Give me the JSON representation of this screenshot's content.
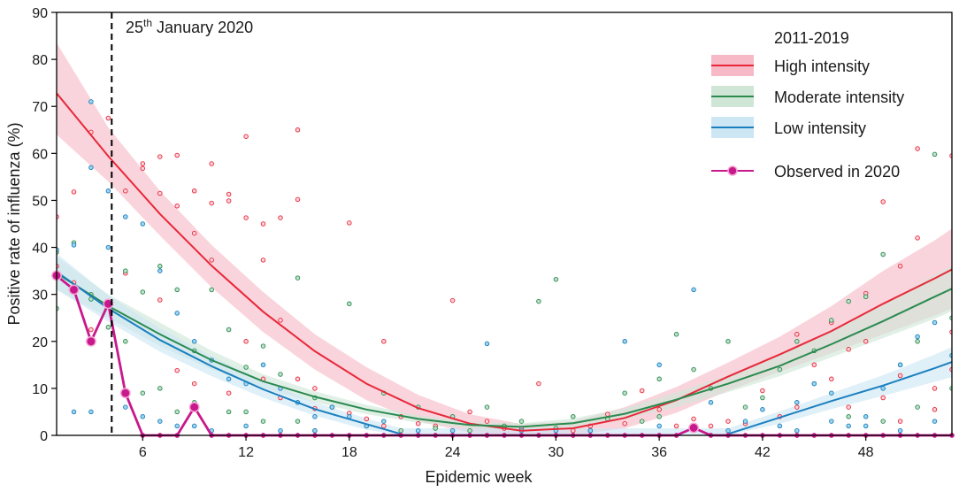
{
  "chart_data": {
    "type": "line",
    "xlabel": "Epidemic week",
    "ylabel": "Positive rate of influenza (%)",
    "xlim": [
      1,
      53
    ],
    "ylim": [
      0,
      90
    ],
    "xticks": [
      6,
      12,
      18,
      24,
      30,
      36,
      42,
      48
    ],
    "yticks": [
      0,
      10,
      20,
      30,
      40,
      50,
      60,
      70,
      80,
      90
    ],
    "annotation": {
      "prefix": "25",
      "superscript": "th",
      "suffix": " January 2020",
      "week": 4.2
    },
    "legend": {
      "title": "2011-2019",
      "position": "top-right",
      "entries": [
        "High intensity",
        "Moderate intensity",
        "Low intensity",
        "Observed in 2020"
      ]
    },
    "series": [
      {
        "name": "High intensity",
        "color": "#e8283a",
        "band": "#f7b9c6",
        "x": [
          1,
          4,
          7,
          10,
          13,
          16,
          19,
          22,
          25,
          28,
          31,
          34,
          37,
          40,
          43,
          46,
          49,
          52,
          53
        ],
        "y": [
          72.8,
          59.4,
          47.1,
          36.1,
          26.3,
          17.9,
          11.0,
          5.8,
          2.5,
          1.0,
          1.5,
          3.7,
          7.5,
          12.5,
          17.2,
          22.2,
          28.0,
          33.4,
          35.3
        ],
        "lower": [
          64.0,
          54.0,
          42.5,
          31.5,
          22.0,
          14.0,
          7.5,
          3.0,
          0.6,
          0.0,
          0.0,
          1.5,
          4.8,
          9.5,
          13.5,
          17.5,
          21.5,
          25.5,
          27.0
        ],
        "upper": [
          83.5,
          65.5,
          52.0,
          40.5,
          30.5,
          21.5,
          14.5,
          8.6,
          4.5,
          2.4,
          3.0,
          6.0,
          10.3,
          15.5,
          21.0,
          27.5,
          35.0,
          41.5,
          44.0
        ]
      },
      {
        "name": "Moderate intensity",
        "color": "#2a8a50",
        "band": "#cfe6d6",
        "x": [
          1,
          4,
          7,
          10,
          13,
          16,
          19,
          22,
          25,
          28,
          31,
          34,
          37,
          40,
          43,
          46,
          49,
          52,
          53
        ],
        "y": [
          34.5,
          27.5,
          21.5,
          16.0,
          11.5,
          8.2,
          5.5,
          3.5,
          2.2,
          1.8,
          2.6,
          4.6,
          7.6,
          11.0,
          14.8,
          19.4,
          24.3,
          29.5,
          31.2
        ],
        "lower": [
          31.0,
          25.0,
          19.0,
          14.0,
          10.0,
          7.0,
          4.5,
          2.7,
          1.5,
          1.0,
          1.6,
          3.4,
          6.0,
          9.2,
          12.6,
          16.6,
          20.7,
          24.8,
          26.4
        ],
        "upper": [
          38.0,
          30.0,
          24.0,
          18.0,
          13.0,
          9.4,
          6.5,
          4.3,
          2.9,
          2.6,
          3.6,
          5.8,
          9.2,
          12.8,
          17.0,
          22.2,
          27.9,
          34.2,
          36.0
        ]
      },
      {
        "name": "Low intensity",
        "color": "#1b7fbf",
        "band": "#cce6f4",
        "x": [
          1,
          4,
          7,
          10,
          13,
          16,
          19,
          21,
          40,
          43,
          46,
          49,
          52,
          53
        ],
        "y": [
          34.8,
          27.0,
          20.3,
          14.7,
          9.8,
          5.6,
          2.4,
          0.3,
          0.3,
          3.8,
          7.3,
          10.6,
          14.3,
          15.6
        ],
        "lower": [
          31.0,
          24.2,
          17.8,
          12.6,
          8.0,
          4.2,
          1.2,
          0.0,
          0.0,
          2.5,
          5.6,
          8.4,
          11.4,
          12.4
        ],
        "upper": [
          38.7,
          29.8,
          22.8,
          16.8,
          11.6,
          7.0,
          3.6,
          1.5,
          1.5,
          5.1,
          9.0,
          12.8,
          17.2,
          18.8
        ]
      },
      {
        "name": "Observed in 2020",
        "color": "#c8198c",
        "x": [
          1,
          2,
          3,
          4,
          5,
          6,
          7,
          8,
          9,
          10,
          11,
          12,
          13,
          14,
          15,
          16,
          17,
          18,
          19,
          20,
          21,
          22,
          23,
          24,
          25,
          26,
          27,
          28,
          29,
          30,
          31,
          32,
          33,
          34,
          35,
          36,
          37,
          38,
          39,
          40,
          41,
          42,
          43,
          44,
          45,
          46,
          47,
          48,
          49,
          50,
          51,
          52,
          53
        ],
        "y": [
          34,
          31,
          20,
          28,
          9,
          0,
          0,
          0,
          6,
          0,
          0,
          0,
          0,
          0,
          0,
          0,
          0,
          0,
          0,
          0,
          0,
          0,
          0,
          0,
          0,
          0,
          0,
          0,
          0,
          0,
          0,
          0,
          0,
          0,
          0,
          0,
          0,
          1.6,
          0,
          0,
          0,
          0,
          0,
          0,
          0,
          0,
          0,
          0,
          0,
          0,
          0,
          0,
          0
        ],
        "highlighted_weeks": [
          1,
          2,
          3,
          4,
          5,
          9,
          38
        ]
      }
    ],
    "scatter": {
      "description": "weekly positive rates of prior seasons 2011-2019",
      "high": [
        [
          1,
          46.5
        ],
        [
          2,
          51.8
        ],
        [
          3,
          64.5
        ],
        [
          4,
          67.5
        ],
        [
          5,
          52
        ],
        [
          6,
          57.8
        ],
        [
          6,
          56.8
        ],
        [
          7,
          59.3
        ],
        [
          7,
          51.5
        ],
        [
          8,
          59.6
        ],
        [
          8,
          48.8
        ],
        [
          9,
          52
        ],
        [
          9,
          43
        ],
        [
          10,
          57.8
        ],
        [
          10,
          49.4
        ],
        [
          11,
          51.3
        ],
        [
          11,
          49.9
        ],
        [
          12,
          63.6
        ],
        [
          12,
          46.3
        ],
        [
          13,
          45
        ],
        [
          13,
          37.3
        ],
        [
          14,
          46.3
        ],
        [
          14,
          24.5
        ],
        [
          15,
          65
        ],
        [
          15,
          50.2
        ],
        [
          16,
          10
        ],
        [
          20,
          20
        ],
        [
          18,
          45.2
        ],
        [
          24,
          28.7
        ],
        [
          44,
          21.5
        ],
        [
          46,
          24
        ],
        [
          48,
          30.2
        ],
        [
          48,
          20
        ],
        [
          49,
          49.7
        ],
        [
          50,
          36
        ],
        [
          51,
          42
        ],
        [
          51,
          61
        ],
        [
          53,
          22
        ],
        [
          53,
          59.5
        ],
        [
          38,
          3.5
        ],
        [
          36,
          5.5
        ],
        [
          41,
          2.5
        ],
        [
          45,
          15
        ],
        [
          47,
          18.3
        ],
        [
          50,
          12.7
        ],
        [
          52,
          5.5
        ],
        [
          35,
          9.5
        ],
        [
          33,
          4.5
        ],
        [
          29,
          11
        ],
        [
          25,
          5
        ],
        [
          42,
          9.5
        ],
        [
          12,
          20
        ],
        [
          10,
          37.3
        ],
        [
          7,
          28.8
        ],
        [
          5,
          34.5
        ],
        [
          3,
          22.5
        ],
        [
          2,
          32.5
        ],
        [
          1,
          36
        ],
        [
          8,
          13.8
        ],
        [
          9,
          11
        ],
        [
          11,
          9
        ],
        [
          13,
          12
        ],
        [
          14,
          8
        ],
        [
          15,
          12
        ],
        [
          16,
          5.7
        ],
        [
          18,
          4.7
        ],
        [
          19,
          3.5
        ],
        [
          21,
          4
        ],
        [
          22,
          2.5
        ],
        [
          23,
          2
        ],
        [
          26,
          3
        ],
        [
          27,
          1.5
        ],
        [
          28,
          1.5
        ],
        [
          31,
          1
        ],
        [
          32,
          2
        ],
        [
          34,
          2.5
        ],
        [
          37,
          2
        ],
        [
          39,
          2
        ],
        [
          40,
          3
        ],
        [
          43,
          4
        ],
        [
          44,
          6
        ],
        [
          46,
          12
        ],
        [
          47,
          6
        ],
        [
          49,
          8
        ],
        [
          50,
          3
        ],
        [
          52,
          10
        ],
        [
          53,
          14
        ],
        [
          20,
          2
        ],
        [
          17,
          6
        ]
      ],
      "moderate": [
        [
          1,
          27
        ],
        [
          2,
          41
        ],
        [
          3,
          29
        ],
        [
          4,
          23
        ],
        [
          5,
          35
        ],
        [
          6,
          30.5
        ],
        [
          7,
          36
        ],
        [
          8,
          31
        ],
        [
          9,
          18
        ],
        [
          10,
          31
        ],
        [
          11,
          22.5
        ],
        [
          12,
          14.5
        ],
        [
          13,
          19
        ],
        [
          14,
          13
        ],
        [
          15,
          33.5
        ],
        [
          16,
          8
        ],
        [
          17,
          6
        ],
        [
          18,
          28
        ],
        [
          20,
          9
        ],
        [
          22,
          6
        ],
        [
          24,
          4
        ],
        [
          26,
          6
        ],
        [
          28,
          3
        ],
        [
          30,
          33.2
        ],
        [
          31,
          4
        ],
        [
          33,
          3.5
        ],
        [
          34,
          9
        ],
        [
          36,
          12
        ],
        [
          37,
          21.5
        ],
        [
          38,
          14
        ],
        [
          39,
          10
        ],
        [
          40,
          20
        ],
        [
          42,
          8
        ],
        [
          43,
          14
        ],
        [
          44,
          20
        ],
        [
          45,
          18
        ],
        [
          46,
          24.5
        ],
        [
          47,
          28.5
        ],
        [
          48,
          29.5
        ],
        [
          49,
          38.5
        ],
        [
          50,
          15
        ],
        [
          51,
          20
        ],
        [
          52,
          59.8
        ],
        [
          53,
          25
        ],
        [
          1,
          39
        ],
        [
          3,
          30
        ],
        [
          5,
          20
        ],
        [
          7,
          10
        ],
        [
          9,
          7
        ],
        [
          11,
          5
        ],
        [
          13,
          3
        ],
        [
          15,
          3
        ],
        [
          19,
          2
        ],
        [
          23,
          1.5
        ],
        [
          27,
          2
        ],
        [
          29,
          28.5
        ],
        [
          32,
          1
        ],
        [
          35,
          3
        ],
        [
          41,
          6
        ],
        [
          45,
          11
        ],
        [
          47,
          4
        ],
        [
          49,
          3
        ],
        [
          51,
          6
        ],
        [
          53,
          10
        ],
        [
          36,
          4
        ],
        [
          30,
          1.5
        ],
        [
          25,
          1
        ],
        [
          21,
          1
        ],
        [
          16,
          1
        ],
        [
          12,
          5
        ],
        [
          8,
          5
        ],
        [
          6,
          9
        ]
      ],
      "low": [
        [
          1,
          39.5
        ],
        [
          2,
          40.5
        ],
        [
          3,
          71
        ],
        [
          3,
          57
        ],
        [
          4,
          52
        ],
        [
          4,
          40
        ],
        [
          5,
          46.5
        ],
        [
          6,
          45
        ],
        [
          7,
          35
        ],
        [
          8,
          26
        ],
        [
          9,
          20
        ],
        [
          10,
          16
        ],
        [
          11,
          12
        ],
        [
          12,
          11
        ],
        [
          13,
          15
        ],
        [
          14,
          10
        ],
        [
          15,
          7
        ],
        [
          16,
          4
        ],
        [
          17,
          6
        ],
        [
          18,
          4
        ],
        [
          19,
          2
        ],
        [
          20,
          3
        ],
        [
          22,
          1
        ],
        [
          24,
          1
        ],
        [
          26,
          19.5
        ],
        [
          28,
          1
        ],
        [
          30,
          1
        ],
        [
          32,
          1
        ],
        [
          34,
          20
        ],
        [
          36,
          15
        ],
        [
          38,
          31
        ],
        [
          40,
          1
        ],
        [
          42,
          5.5
        ],
        [
          43,
          2
        ],
        [
          44,
          7
        ],
        [
          45,
          11
        ],
        [
          46,
          9
        ],
        [
          47,
          2
        ],
        [
          48,
          2
        ],
        [
          49,
          10
        ],
        [
          50,
          15
        ],
        [
          51,
          21
        ],
        [
          52,
          24
        ],
        [
          53,
          17
        ],
        [
          2,
          5
        ],
        [
          3,
          5
        ],
        [
          5,
          6
        ],
        [
          6,
          4
        ],
        [
          7,
          3
        ],
        [
          8,
          2
        ],
        [
          9,
          2
        ],
        [
          10,
          1
        ],
        [
          12,
          2
        ],
        [
          14,
          1
        ],
        [
          16,
          1
        ],
        [
          36,
          2
        ],
        [
          39,
          7
        ],
        [
          41,
          3
        ],
        [
          44,
          1
        ],
        [
          46,
          3
        ],
        [
          48,
          4
        ],
        [
          50,
          1
        ],
        [
          52,
          3
        ]
      ]
    }
  }
}
